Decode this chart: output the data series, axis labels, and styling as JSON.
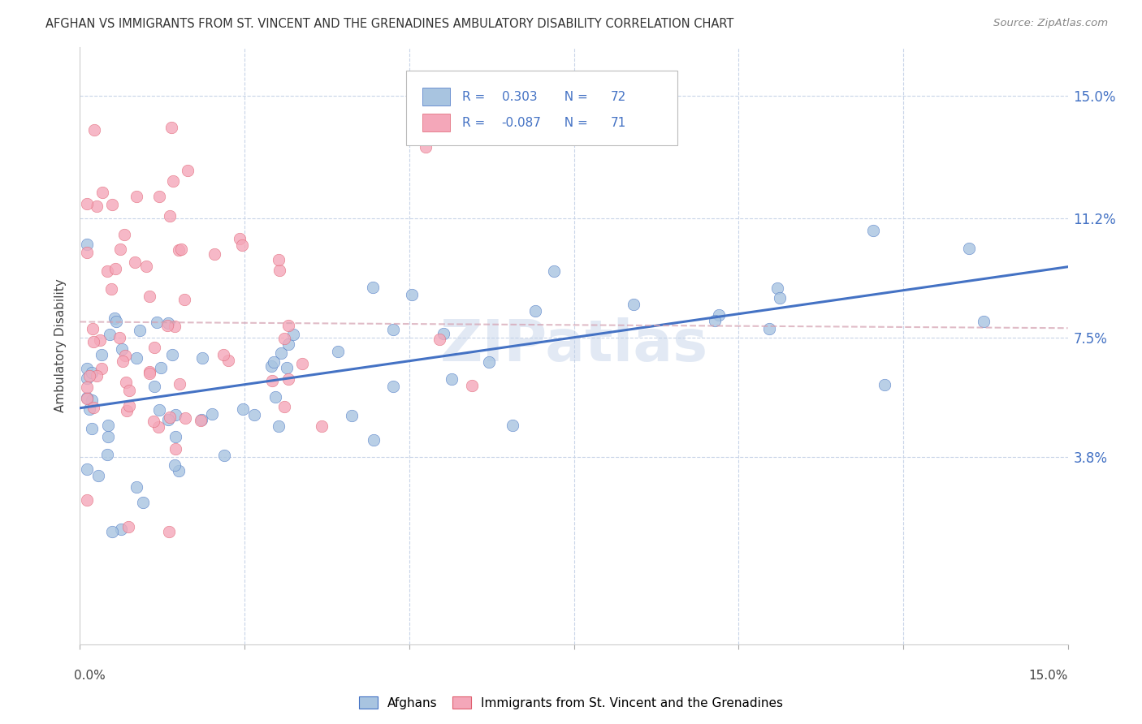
{
  "title": "AFGHAN VS IMMIGRANTS FROM ST. VINCENT AND THE GRENADINES AMBULATORY DISABILITY CORRELATION CHART",
  "source": "Source: ZipAtlas.com",
  "ylabel": "Ambulatory Disability",
  "xlim": [
    0.0,
    0.15
  ],
  "ylim": [
    -0.02,
    0.165
  ],
  "color_afghan": "#a8c4e0",
  "color_afghan_edge": "#4472c4",
  "color_svg": "#f4a7b9",
  "color_svg_edge": "#e06070",
  "color_afghan_line": "#4472c4",
  "color_svg_line": "#e06070",
  "color_svg_trend": "#d4a0b0",
  "color_blue_text": "#4472c4",
  "legend_label1": "Afghans",
  "legend_label2": "Immigrants from St. Vincent and the Grenadines",
  "R_afghan": 0.303,
  "N_afghan": 72,
  "R_svg": -0.087,
  "N_svg": 71,
  "yticks": [
    0.038,
    0.075,
    0.112,
    0.15
  ],
  "ytick_labels": [
    "3.8%",
    "7.5%",
    "11.2%",
    "15.0%"
  ],
  "grid_color": "#c8d4e8",
  "watermark": "ZIPatlas"
}
